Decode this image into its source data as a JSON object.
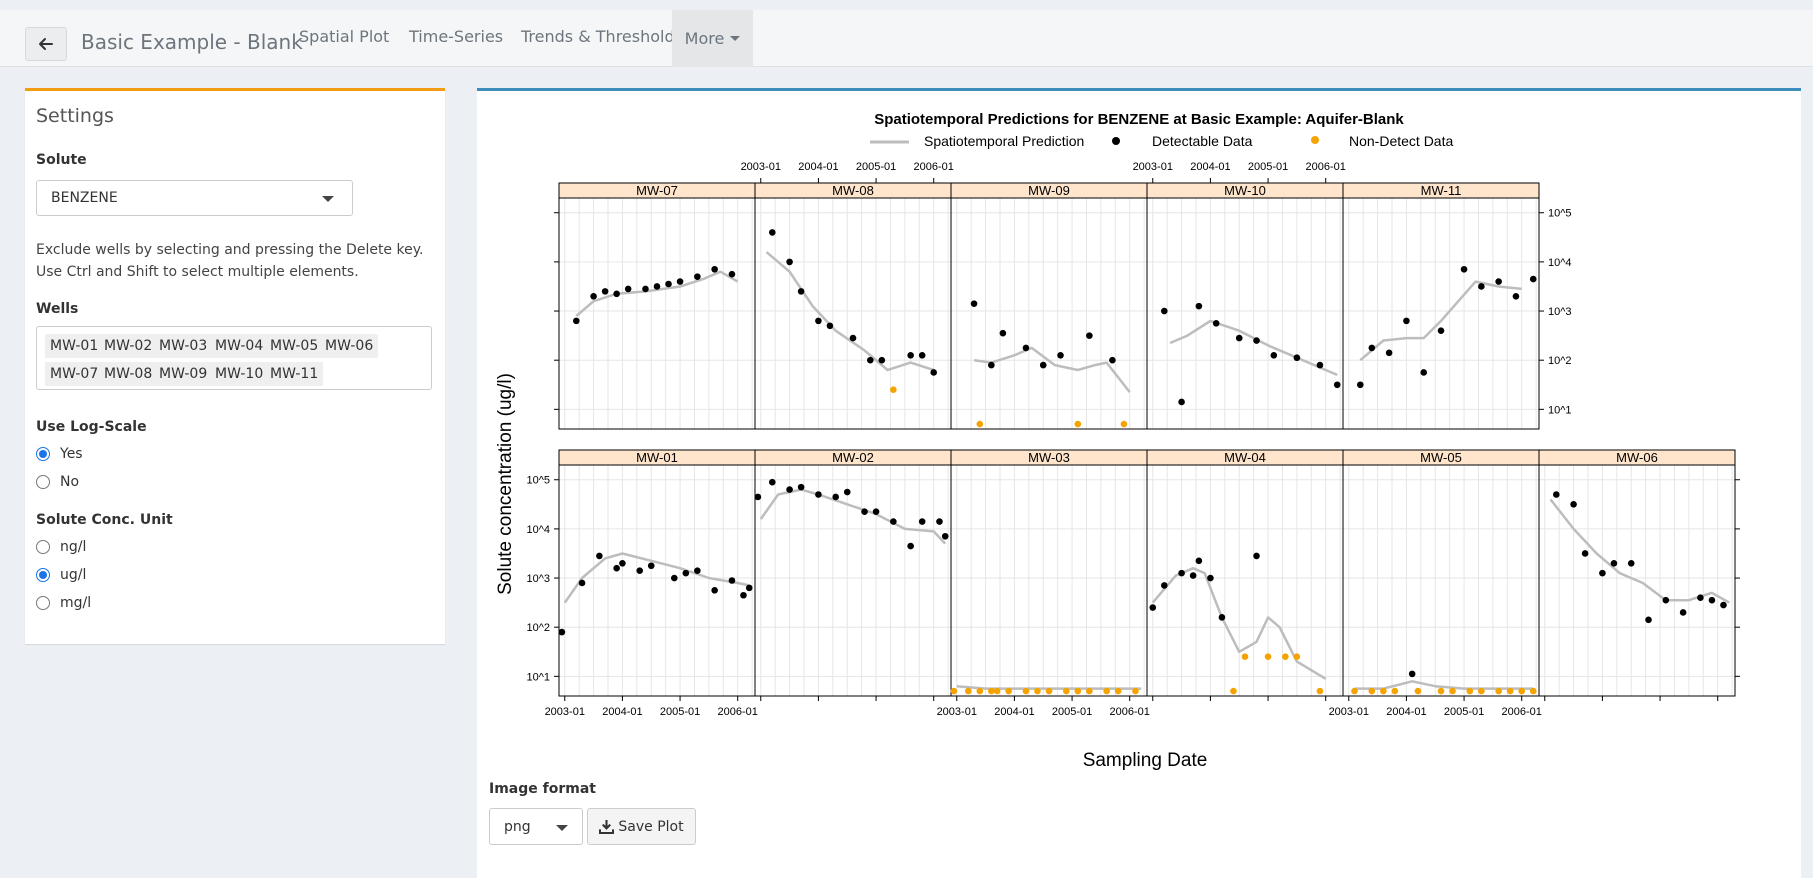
{
  "topbar": {
    "title": "Basic Example - Blank",
    "tabs": [
      "Spatial Plot",
      "Time-Series",
      "Trends & Thresholds"
    ],
    "more_label": "More"
  },
  "sidebar": {
    "title": "Settings",
    "solute_label": "Solute",
    "solute_value": "BENZENE",
    "help_text": "Exclude wells by selecting and pressing the Delete key. Use Ctrl and Shift to select multiple elements.",
    "wells_label": "Wells",
    "wells": [
      "MW-01",
      "MW-02",
      "MW-03",
      "MW-04",
      "MW-05",
      "MW-06",
      "MW-07",
      "MW-08",
      "MW-09",
      "MW-10",
      "MW-11"
    ],
    "logscale_label": "Use Log-Scale",
    "logscale_options": [
      "Yes",
      "No"
    ],
    "logscale_selected": "Yes",
    "unit_label": "Solute Conc. Unit",
    "unit_options": [
      "ng/l",
      "ug/l",
      "mg/l"
    ],
    "unit_selected": "ug/l"
  },
  "export": {
    "format_label": "Image format",
    "format_value": "png",
    "save_label": "Save Plot"
  },
  "colors": {
    "accent_orange": "#f39c12",
    "accent_blue": "#3c8dbc",
    "strip": "#ffe5cc",
    "prediction_line": "#bdbdbd",
    "detect": "#000000",
    "nondetect": "#f5a300"
  },
  "chart_data": {
    "type": "scatter",
    "title": "Spatiotemporal Predictions for BENZENE at Basic Example: Aquifer-Blank",
    "xlabel": "Sampling Date",
    "ylabel": "Solute concentration (ug/l)",
    "log_scale": true,
    "y_ticks": [
      "10^1",
      "10^2",
      "10^3",
      "10^4",
      "10^5"
    ],
    "x_ticks": [
      "2003-01",
      "2004-01",
      "2005-01",
      "2006-01"
    ],
    "xlim": [
      2002.9,
      2006.3
    ],
    "ylim_log10": [
      0.6,
      5.3
    ],
    "legend": [
      {
        "name": "Spatiotemporal Prediction",
        "kind": "line"
      },
      {
        "name": "Detectable Data",
        "kind": "point"
      },
      {
        "name": "Non-Detect Data",
        "kind": "point"
      }
    ],
    "panels": [
      {
        "well": "MW-07",
        "detect": [
          [
            2003.2,
            2.8
          ],
          [
            2003.5,
            3.3
          ],
          [
            2003.7,
            3.4
          ],
          [
            2003.9,
            3.35
          ],
          [
            2004.1,
            3.45
          ],
          [
            2004.4,
            3.45
          ],
          [
            2004.6,
            3.5
          ],
          [
            2004.8,
            3.55
          ],
          [
            2005.0,
            3.6
          ],
          [
            2005.3,
            3.7
          ],
          [
            2005.6,
            3.85
          ],
          [
            2005.9,
            3.75
          ]
        ],
        "nondetect": [],
        "pred": [
          [
            2003.2,
            2.9
          ],
          [
            2003.5,
            3.2
          ],
          [
            2003.9,
            3.35
          ],
          [
            2004.4,
            3.4
          ],
          [
            2005.0,
            3.5
          ],
          [
            2005.4,
            3.65
          ],
          [
            2005.7,
            3.8
          ],
          [
            2006.0,
            3.6
          ]
        ]
      },
      {
        "well": "MW-08",
        "detect": [
          [
            2003.2,
            4.6
          ],
          [
            2003.5,
            4.0
          ],
          [
            2003.7,
            3.4
          ],
          [
            2004.0,
            2.8
          ],
          [
            2004.2,
            2.7
          ],
          [
            2004.6,
            2.45
          ],
          [
            2004.9,
            2.0
          ],
          [
            2005.1,
            2.0
          ],
          [
            2005.6,
            2.1
          ],
          [
            2005.8,
            2.1
          ],
          [
            2006.0,
            1.75
          ]
        ],
        "nondetect": [
          [
            2005.3,
            1.4
          ]
        ],
        "pred": [
          [
            2003.1,
            4.2
          ],
          [
            2003.5,
            3.8
          ],
          [
            2003.9,
            3.1
          ],
          [
            2004.3,
            2.6
          ],
          [
            2004.8,
            2.2
          ],
          [
            2005.2,
            1.8
          ],
          [
            2005.6,
            1.95
          ],
          [
            2006.0,
            1.8
          ]
        ]
      },
      {
        "well": "MW-09",
        "detect": [
          [
            2003.3,
            3.15
          ],
          [
            2003.6,
            1.9
          ],
          [
            2003.8,
            2.55
          ],
          [
            2004.2,
            2.25
          ],
          [
            2004.5,
            1.9
          ],
          [
            2004.8,
            2.1
          ],
          [
            2005.3,
            2.5
          ],
          [
            2005.7,
            2.0
          ]
        ],
        "nondetect": [
          [
            2003.4,
            0.7
          ],
          [
            2005.1,
            0.7
          ],
          [
            2005.9,
            0.7
          ]
        ],
        "pred": [
          [
            2003.3,
            2.0
          ],
          [
            2003.6,
            1.95
          ],
          [
            2004.0,
            2.1
          ],
          [
            2004.3,
            2.25
          ],
          [
            2004.7,
            1.9
          ],
          [
            2005.1,
            1.8
          ],
          [
            2005.4,
            1.9
          ],
          [
            2005.6,
            1.95
          ],
          [
            2006.0,
            1.35
          ]
        ]
      },
      {
        "well": "MW-10",
        "detect": [
          [
            2003.2,
            3.0
          ],
          [
            2003.5,
            1.15
          ],
          [
            2003.8,
            3.1
          ],
          [
            2004.1,
            2.75
          ],
          [
            2004.5,
            2.45
          ],
          [
            2004.8,
            2.4
          ],
          [
            2005.1,
            2.1
          ],
          [
            2005.5,
            2.05
          ],
          [
            2005.9,
            1.9
          ],
          [
            2006.2,
            1.5
          ]
        ],
        "nondetect": [],
        "pred": [
          [
            2003.3,
            2.35
          ],
          [
            2003.6,
            2.5
          ],
          [
            2004.0,
            2.8
          ],
          [
            2004.5,
            2.6
          ],
          [
            2005.0,
            2.3
          ],
          [
            2005.5,
            2.05
          ],
          [
            2006.0,
            1.8
          ],
          [
            2006.2,
            1.7
          ]
        ]
      },
      {
        "well": "MW-11",
        "detect": [
          [
            2003.2,
            1.5
          ],
          [
            2003.4,
            2.25
          ],
          [
            2003.7,
            2.15
          ],
          [
            2004.0,
            2.8
          ],
          [
            2004.3,
            1.75
          ],
          [
            2004.6,
            2.6
          ],
          [
            2005.0,
            3.85
          ],
          [
            2005.3,
            3.5
          ],
          [
            2005.6,
            3.6
          ],
          [
            2005.9,
            3.3
          ],
          [
            2006.2,
            3.65
          ]
        ],
        "nondetect": [],
        "pred": [
          [
            2003.2,
            2.0
          ],
          [
            2003.6,
            2.4
          ],
          [
            2004.0,
            2.45
          ],
          [
            2004.3,
            2.45
          ],
          [
            2004.6,
            2.8
          ],
          [
            2004.9,
            3.2
          ],
          [
            2005.2,
            3.6
          ],
          [
            2005.6,
            3.5
          ],
          [
            2006.0,
            3.45
          ]
        ]
      },
      {
        "well": "MW-01",
        "detect": [
          [
            2002.95,
            1.9
          ],
          [
            2003.3,
            2.9
          ],
          [
            2003.6,
            3.45
          ],
          [
            2003.9,
            3.2
          ],
          [
            2004.0,
            3.3
          ],
          [
            2004.3,
            3.15
          ],
          [
            2004.5,
            3.25
          ],
          [
            2004.9,
            3.0
          ],
          [
            2005.1,
            3.1
          ],
          [
            2005.3,
            3.15
          ],
          [
            2005.6,
            2.75
          ],
          [
            2005.9,
            2.95
          ],
          [
            2006.1,
            2.65
          ],
          [
            2006.2,
            2.8
          ]
        ],
        "nondetect": [],
        "pred": [
          [
            2003.0,
            2.5
          ],
          [
            2003.3,
            3.0
          ],
          [
            2003.7,
            3.4
          ],
          [
            2004.0,
            3.5
          ],
          [
            2004.5,
            3.35
          ],
          [
            2005.0,
            3.2
          ],
          [
            2005.5,
            3.0
          ],
          [
            2006.0,
            2.9
          ],
          [
            2006.2,
            2.85
          ]
        ]
      },
      {
        "well": "MW-02",
        "detect": [
          [
            2002.95,
            4.65
          ],
          [
            2003.2,
            4.95
          ],
          [
            2003.5,
            4.8
          ],
          [
            2003.7,
            4.85
          ],
          [
            2004.0,
            4.7
          ],
          [
            2004.3,
            4.65
          ],
          [
            2004.5,
            4.75
          ],
          [
            2004.8,
            4.35
          ],
          [
            2005.0,
            4.35
          ],
          [
            2005.3,
            4.15
          ],
          [
            2005.6,
            3.65
          ],
          [
            2005.8,
            4.15
          ],
          [
            2006.1,
            4.15
          ],
          [
            2006.2,
            3.85
          ]
        ],
        "nondetect": [],
        "pred": [
          [
            2003.0,
            4.2
          ],
          [
            2003.3,
            4.7
          ],
          [
            2003.7,
            4.8
          ],
          [
            2004.0,
            4.7
          ],
          [
            2004.5,
            4.5
          ],
          [
            2005.0,
            4.3
          ],
          [
            2005.5,
            4.0
          ],
          [
            2006.0,
            3.95
          ],
          [
            2006.2,
            3.7
          ]
        ]
      },
      {
        "well": "MW-03",
        "detect": [],
        "nondetect": [
          [
            2002.95,
            0.7
          ],
          [
            2003.2,
            0.7
          ],
          [
            2003.4,
            0.7
          ],
          [
            2003.6,
            0.7
          ],
          [
            2003.7,
            0.7
          ],
          [
            2003.9,
            0.7
          ],
          [
            2004.2,
            0.7
          ],
          [
            2004.4,
            0.7
          ],
          [
            2004.6,
            0.7
          ],
          [
            2004.9,
            0.7
          ],
          [
            2005.1,
            0.7
          ],
          [
            2005.3,
            0.7
          ],
          [
            2005.6,
            0.7
          ],
          [
            2005.8,
            0.7
          ],
          [
            2006.1,
            0.7
          ]
        ],
        "pred": [
          [
            2003.0,
            0.8
          ],
          [
            2003.5,
            0.75
          ],
          [
            2004.0,
            0.75
          ],
          [
            2005.0,
            0.75
          ],
          [
            2006.2,
            0.75
          ]
        ]
      },
      {
        "well": "MW-04",
        "detect": [
          [
            2003.0,
            2.4
          ],
          [
            2003.2,
            2.85
          ],
          [
            2003.5,
            3.1
          ],
          [
            2003.7,
            3.05
          ],
          [
            2003.8,
            3.35
          ],
          [
            2004.0,
            3.0
          ],
          [
            2004.2,
            2.2
          ],
          [
            2004.8,
            3.45
          ]
        ],
        "nondetect": [
          [
            2004.4,
            0.7
          ],
          [
            2004.6,
            1.4
          ],
          [
            2005.0,
            1.4
          ],
          [
            2005.3,
            1.4
          ],
          [
            2005.5,
            1.4
          ],
          [
            2005.9,
            0.7
          ]
        ],
        "pred": [
          [
            2003.0,
            2.5
          ],
          [
            2003.4,
            3.05
          ],
          [
            2003.7,
            3.2
          ],
          [
            2003.9,
            3.1
          ],
          [
            2004.2,
            2.2
          ],
          [
            2004.5,
            1.5
          ],
          [
            2004.8,
            1.7
          ],
          [
            2005.0,
            2.2
          ],
          [
            2005.2,
            2.0
          ],
          [
            2005.5,
            1.3
          ],
          [
            2006.0,
            0.95
          ]
        ]
      },
      {
        "well": "MW-05",
        "detect": [
          [
            2004.1,
            1.05
          ]
        ],
        "nondetect": [
          [
            2003.1,
            0.7
          ],
          [
            2003.4,
            0.7
          ],
          [
            2003.6,
            0.7
          ],
          [
            2003.8,
            0.7
          ],
          [
            2004.2,
            0.7
          ],
          [
            2004.6,
            0.7
          ],
          [
            2004.8,
            0.7
          ],
          [
            2005.1,
            0.7
          ],
          [
            2005.3,
            0.7
          ],
          [
            2005.6,
            0.7
          ],
          [
            2005.8,
            0.7
          ],
          [
            2006.0,
            0.7
          ],
          [
            2006.2,
            0.7
          ]
        ],
        "pred": [
          [
            2003.1,
            0.75
          ],
          [
            2003.6,
            0.75
          ],
          [
            2004.1,
            0.9
          ],
          [
            2004.5,
            0.8
          ],
          [
            2005.0,
            0.75
          ],
          [
            2006.2,
            0.75
          ]
        ]
      },
      {
        "well": "MW-06",
        "detect": [
          [
            2003.2,
            4.7
          ],
          [
            2003.5,
            4.5
          ],
          [
            2003.7,
            3.5
          ],
          [
            2004.0,
            3.1
          ],
          [
            2004.2,
            3.3
          ],
          [
            2004.5,
            3.3
          ],
          [
            2004.8,
            2.15
          ],
          [
            2005.1,
            2.55
          ],
          [
            2005.4,
            2.3
          ],
          [
            2005.7,
            2.6
          ],
          [
            2005.9,
            2.55
          ],
          [
            2006.1,
            2.45
          ]
        ],
        "nondetect": [],
        "pred": [
          [
            2003.1,
            4.6
          ],
          [
            2003.5,
            4.0
          ],
          [
            2003.9,
            3.5
          ],
          [
            2004.3,
            3.1
          ],
          [
            2004.7,
            2.9
          ],
          [
            2005.1,
            2.55
          ],
          [
            2005.5,
            2.55
          ],
          [
            2005.9,
            2.7
          ],
          [
            2006.2,
            2.5
          ]
        ]
      }
    ]
  }
}
